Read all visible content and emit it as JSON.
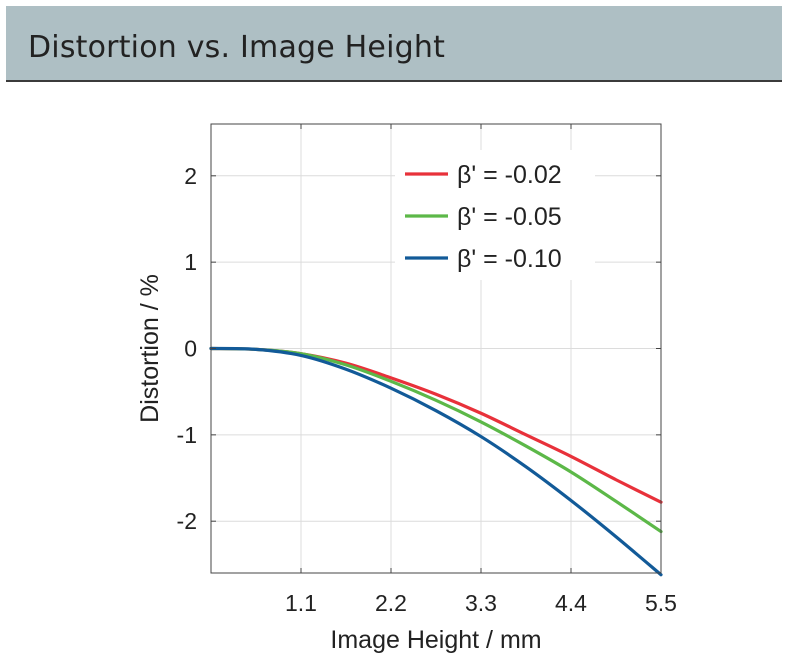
{
  "header": {
    "title": "Distortion vs. Image Height"
  },
  "chart_data": {
    "type": "line",
    "title": "",
    "xlabel": "Image Height / mm",
    "ylabel": "Distortion / %",
    "xlim": [
      0,
      5.5
    ],
    "ylim": [
      -2.6,
      2.6
    ],
    "xticks": [
      1.1,
      2.2,
      3.3,
      4.4,
      5.5
    ],
    "xtick_labels": [
      "1.1",
      "2.2",
      "3.3",
      "4.4",
      "5.5"
    ],
    "yticks": [
      2,
      1,
      0,
      -1,
      -2
    ],
    "ytick_labels": [
      "2",
      "1",
      "0",
      "-1",
      "-2"
    ],
    "grid": true,
    "legend_position": "top-right",
    "x": [
      0,
      0.55,
      1.1,
      1.65,
      2.2,
      2.75,
      3.3,
      3.85,
      4.4,
      4.95,
      5.5
    ],
    "series": [
      {
        "name": "β' = -0.02",
        "color": "#e8313a",
        "values": [
          0,
          -0.01,
          -0.06,
          -0.17,
          -0.34,
          -0.53,
          -0.75,
          -1.0,
          -1.25,
          -1.52,
          -1.78
        ]
      },
      {
        "name": "β' = -0.05",
        "color": "#5cb848",
        "values": [
          0,
          -0.01,
          -0.06,
          -0.19,
          -0.38,
          -0.6,
          -0.85,
          -1.13,
          -1.43,
          -1.77,
          -2.12
        ]
      },
      {
        "name": "β' = -0.10",
        "color": "#125a98",
        "values": [
          0,
          -0.01,
          -0.08,
          -0.24,
          -0.46,
          -0.72,
          -1.02,
          -1.37,
          -1.76,
          -2.18,
          -2.62
        ]
      }
    ]
  }
}
